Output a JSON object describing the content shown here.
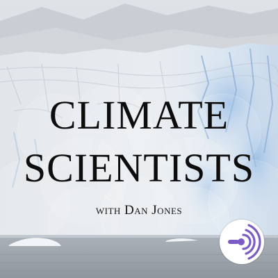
{
  "cover": {
    "title_line1": "CLIMATE",
    "title_line2": "SCIENTISTS",
    "byline": "with Dan Jones"
  },
  "badge": {
    "icon": "anchor-logo-icon",
    "color": "#7a5cc4"
  },
  "colors": {
    "text": "#0d0d0d",
    "sky": "#d7dbe0",
    "glacier_blue": "#a9c6e6",
    "water": "#9fa6ae"
  }
}
